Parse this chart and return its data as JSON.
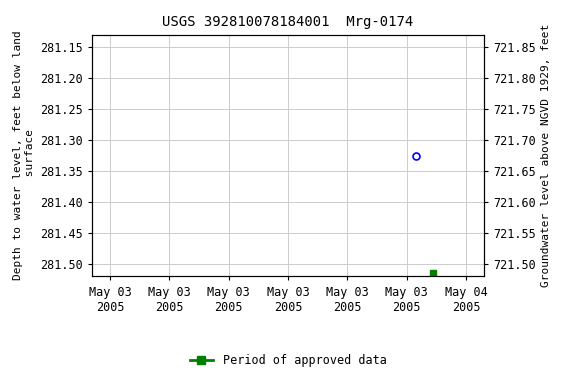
{
  "title": "USGS 392810078184001  Mrg-0174",
  "ylabel_left": "Depth to water level, feet below land\n surface",
  "ylabel_right": "Groundwater level above NGVD 1929, feet",
  "ylim_left": [
    281.52,
    281.13
  ],
  "ylim_right": [
    721.48,
    721.87
  ],
  "yticks_left": [
    281.15,
    281.2,
    281.25,
    281.3,
    281.35,
    281.4,
    281.45,
    281.5
  ],
  "yticks_right": [
    721.85,
    721.8,
    721.75,
    721.7,
    721.65,
    721.6,
    721.55,
    721.5
  ],
  "xtick_positions": [
    0,
    1,
    2,
    3,
    4,
    5,
    6
  ],
  "xtick_labels": [
    "May 03\n2005",
    "May 03\n2005",
    "May 03\n2005",
    "May 03\n2005",
    "May 03\n2005",
    "May 03\n2005",
    "May 04\n2005"
  ],
  "xlim": [
    -0.3,
    6.3
  ],
  "blue_point_x": 5.15,
  "blue_point_y": 281.325,
  "green_point_x": 5.45,
  "green_point_y": 281.515,
  "legend_label": "Period of approved data",
  "legend_color": "#008000",
  "background_color": "#ffffff",
  "grid_color": "#cccccc",
  "title_fontsize": 10,
  "axis_label_fontsize": 8,
  "tick_fontsize": 8.5
}
